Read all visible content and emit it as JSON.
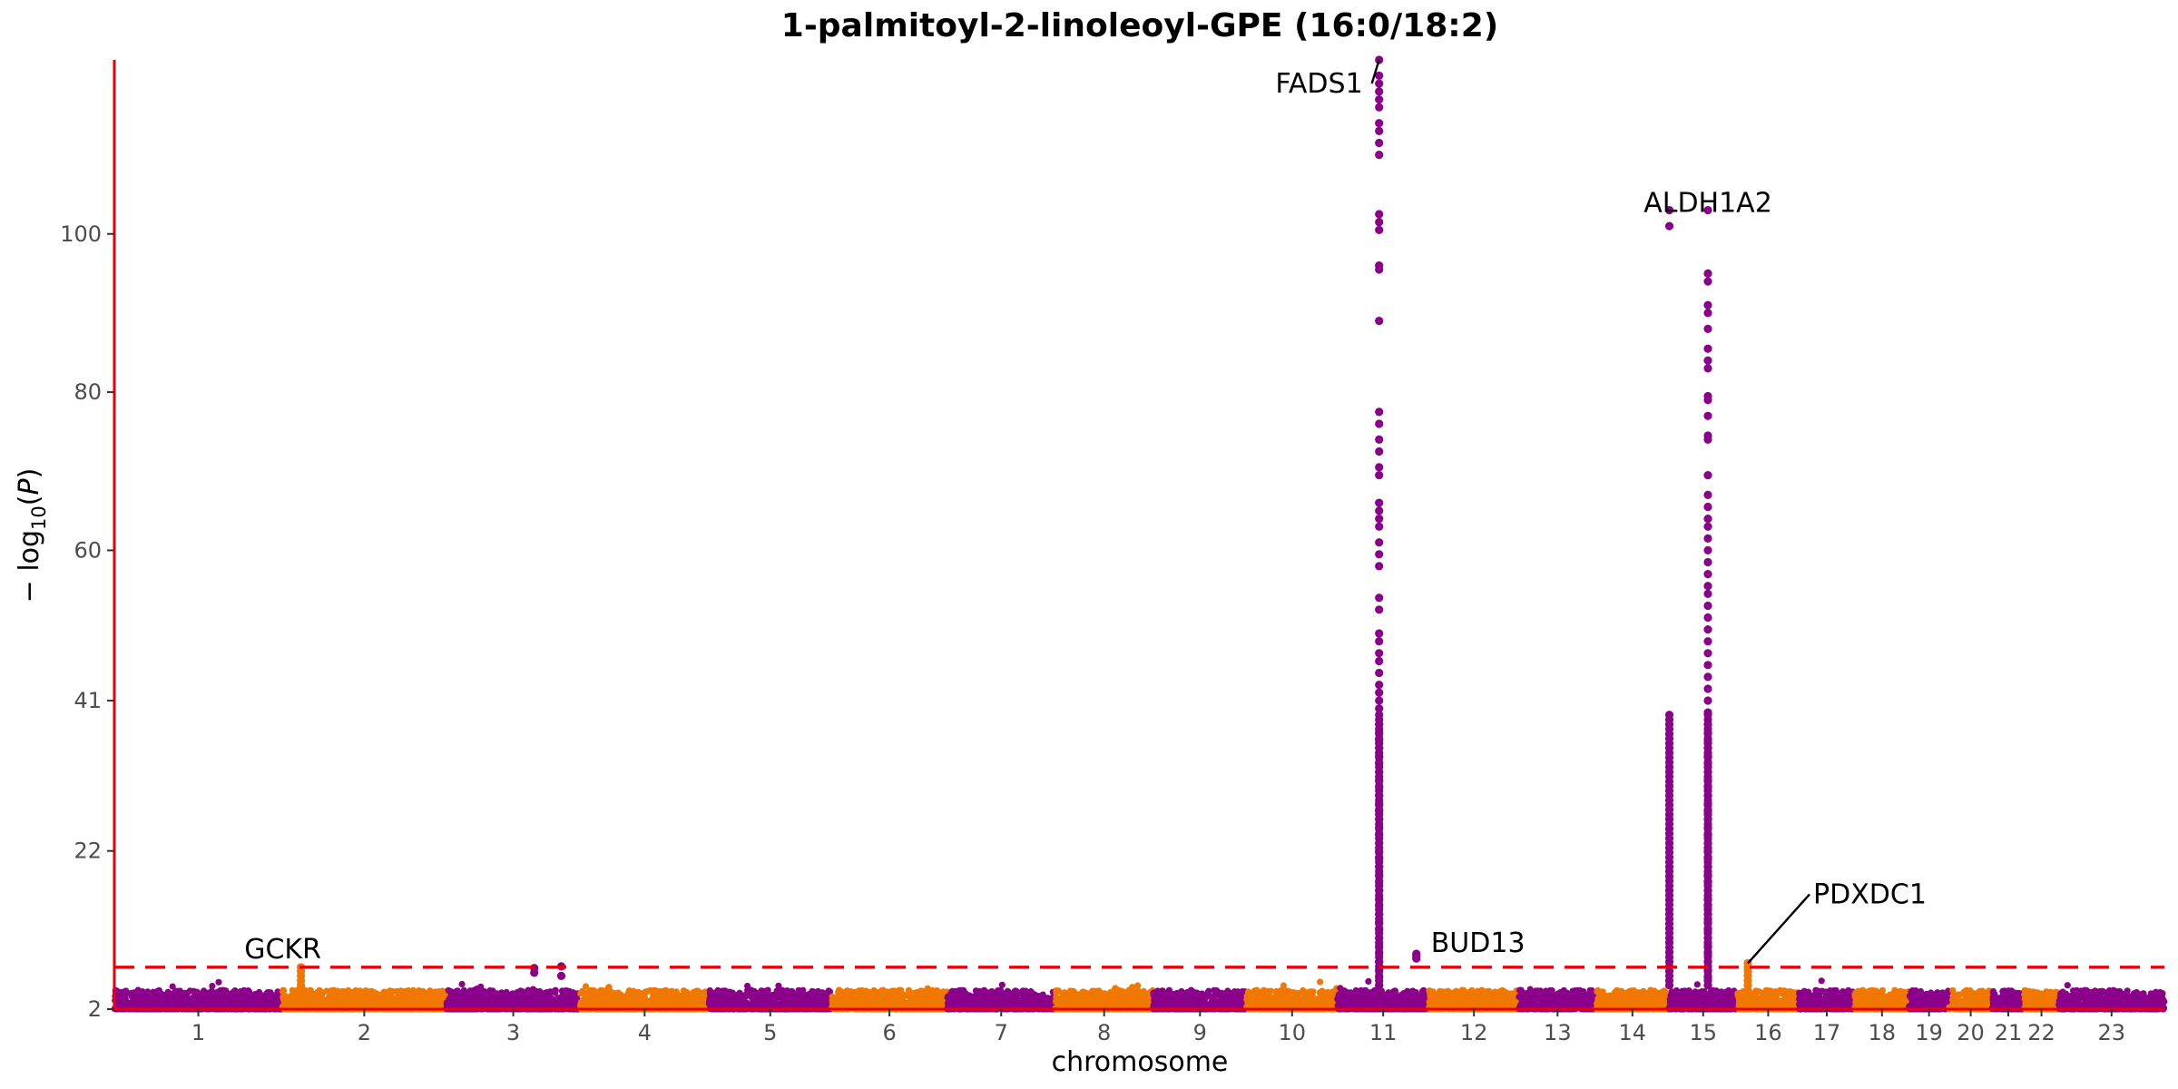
{
  "chart_data": {
    "type": "scatter",
    "title": "1-palmitoyl-2-linoleoyl-GPE (16:0/18:2)",
    "xlabel": "chromosome",
    "ylabel": "− log10(P)",
    "ylim": [
      2,
      122
    ],
    "yticks": [
      2,
      22,
      41,
      60,
      80,
      100
    ],
    "threshold": 7.3,
    "colors": {
      "odd": "#8B008B",
      "even": "#F07800",
      "threshold": "#e8000b",
      "axis": "#e8000b",
      "label_line": "#000000"
    },
    "chromosomes": [
      {
        "chr": "1",
        "size": 248
      },
      {
        "chr": "2",
        "size": 242
      },
      {
        "chr": "3",
        "size": 198
      },
      {
        "chr": "4",
        "size": 190
      },
      {
        "chr": "5",
        "size": 181
      },
      {
        "chr": "6",
        "size": 171
      },
      {
        "chr": "7",
        "size": 159
      },
      {
        "chr": "8",
        "size": 145
      },
      {
        "chr": "9",
        "size": 138
      },
      {
        "chr": "10",
        "size": 134
      },
      {
        "chr": "11",
        "size": 135
      },
      {
        "chr": "12",
        "size": 133
      },
      {
        "chr": "13",
        "size": 114
      },
      {
        "chr": "14",
        "size": 107
      },
      {
        "chr": "15",
        "size": 102
      },
      {
        "chr": "16",
        "size": 90
      },
      {
        "chr": "17",
        "size": 83
      },
      {
        "chr": "18",
        "size": 80
      },
      {
        "chr": "19",
        "size": 59
      },
      {
        "chr": "20",
        "size": 64
      },
      {
        "chr": "21",
        "size": 47
      },
      {
        "chr": "22",
        "size": 51
      },
      {
        "chr": "23",
        "size": 156
      }
    ],
    "peaks": [
      {
        "chr": "11",
        "pos": 61.5,
        "values": [
          122,
          120,
          119,
          118,
          117,
          116,
          114,
          113,
          111.5,
          110,
          102.5,
          101.5,
          100.5,
          96,
          95.5,
          89,
          77.5,
          76,
          74,
          72.5,
          70.5,
          69.5,
          66,
          65,
          64,
          63,
          61,
          59.5,
          58,
          54,
          52.5,
          49.5,
          48.5,
          47,
          46,
          44.5,
          43,
          42,
          41,
          40,
          38,
          37,
          36,
          35,
          34,
          33,
          32,
          31,
          30,
          29,
          28,
          27,
          26,
          25,
          24,
          23,
          22,
          21,
          20,
          19,
          18,
          17,
          16,
          15,
          14,
          13,
          12,
          11,
          10,
          9,
          8,
          7,
          6,
          5
        ]
      },
      {
        "chr": "11",
        "pos": 116.5,
        "values": [
          9,
          8.7,
          8.4
        ]
      },
      {
        "chr": "15",
        "pos": 58.0,
        "values": [
          103,
          95,
          94,
          91,
          90,
          88,
          85.5,
          84,
          83,
          79.5,
          79,
          77,
          74.5,
          74,
          69.5,
          67,
          65.5,
          64,
          63,
          61.5,
          60,
          58.5,
          57,
          55.5,
          54.5,
          53,
          51.5,
          50,
          48.5,
          47,
          45.5,
          44,
          42.5,
          41,
          39.5,
          38,
          37,
          36,
          35,
          34,
          33,
          32,
          31,
          30,
          29,
          28,
          27,
          26,
          25,
          24,
          23,
          22,
          21,
          20,
          19,
          18,
          17,
          16,
          15,
          14,
          13,
          12,
          11,
          10,
          9,
          8,
          7,
          6,
          5
        ]
      },
      {
        "chr": "15",
        "pos": 1.0,
        "values": [
          103,
          101
        ]
      },
      {
        "chr": "16",
        "pos": 15.0,
        "values": [
          7.8,
          7.3,
          6.8,
          6.2,
          5.6,
          5,
          4.4
        ]
      },
      {
        "chr": "2",
        "pos": 27.5,
        "values": [
          7.3,
          6.8,
          6.2,
          5.6,
          5.0,
          4.4
        ]
      },
      {
        "chr": "3",
        "pos": 130,
        "values": [
          7.2,
          6.6
        ]
      },
      {
        "chr": "3",
        "pos": 170,
        "values": [
          7.4,
          6.2
        ]
      }
    ],
    "annotations": [
      {
        "label": "FADS1",
        "chr": "11",
        "pos": 61.5,
        "y": 122
      },
      {
        "label": "ALDH1A2",
        "chr": "15",
        "pos": 58.0,
        "y": 103
      },
      {
        "label": "BUD13",
        "chr": "11",
        "pos": 116.5,
        "y": 9
      },
      {
        "label": "PDXDC1",
        "chr": "16",
        "pos": 15.0,
        "y": 7.8
      },
      {
        "label": "GCKR",
        "chr": "2",
        "pos": 27.5,
        "y": 7.3
      }
    ]
  }
}
